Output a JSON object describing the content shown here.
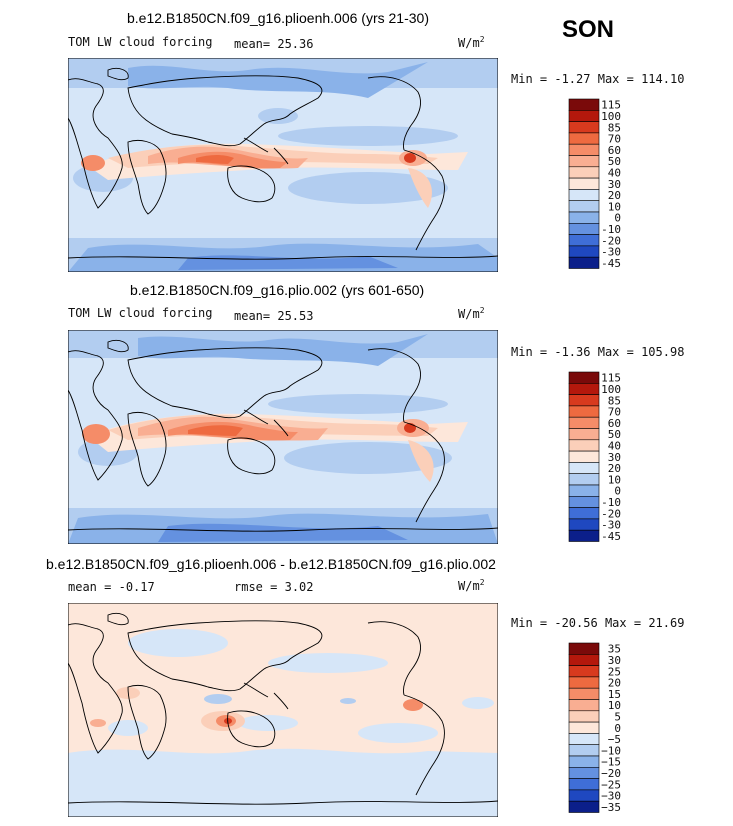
{
  "season": "SON",
  "palette": {
    "c115": "#7a0a0a",
    "c100": "#b4180c",
    "c85": "#d83a1e",
    "c70": "#ee6a40",
    "c60": "#f58c68",
    "c50": "#f9ae92",
    "c40": "#fbcfb9",
    "c30": "#fde7da",
    "c20": "#d6e6f8",
    "c10": "#b2cdf0",
    "c0": "#8ab2e9",
    "cm10": "#6491e0",
    "cm20": "#3f6ed7",
    "cm30": "#1f48c0",
    "cm45": "#0b1f8a"
  },
  "panels": [
    {
      "title": "b.e12.B1850CN.f09_g16.plioenh.006 (yrs 21-30)",
      "variable": "TOM LW cloud forcing",
      "stat1_label": "mean=",
      "stat1_value": "25.36",
      "units_base": "W/m",
      "units_exp": "2",
      "min_label": "Min =",
      "min_value": "-1.27",
      "max_label": "Max =",
      "max_value": "114.10"
    },
    {
      "title": "b.e12.B1850CN.f09_g16.plio.002 (yrs 601-650)",
      "variable": "TOM LW cloud forcing",
      "stat1_label": "mean=",
      "stat1_value": "25.53",
      "units_base": "W/m",
      "units_exp": "2",
      "min_label": "Min =",
      "min_value": "-1.36",
      "max_label": "Max =",
      "max_value": "105.98"
    },
    {
      "title": "b.e12.B1850CN.f09_g16.plioenh.006 - b.e12.B1850CN.f09_g16.plio.002",
      "stat1_label": "mean =",
      "stat1_value": "-0.17",
      "stat2_label": "rmse =",
      "stat2_value": "3.02",
      "units_base": "W/m",
      "units_exp": "2",
      "min_label": "Min =",
      "min_value": "-20.56",
      "max_label": "Max =",
      "max_value": "21.69"
    }
  ],
  "chart_data": [
    {
      "type": "heatmap",
      "title": "b.e12.B1850CN.f09_g16.plioenh.006 (yrs 21-30)",
      "variable": "TOM LW cloud forcing",
      "units": "W/m^2",
      "season": "SON",
      "mean": 25.36,
      "min": -1.27,
      "max": 114.1,
      "colorbar_levels": [
        115,
        100,
        85,
        70,
        60,
        50,
        40,
        30,
        20,
        10,
        0,
        -10,
        -20,
        -30,
        -45
      ],
      "colorbar_labels": [
        "115",
        "100",
        "85",
        "70",
        "60",
        "50",
        "40",
        "30",
        "20",
        "10",
        "0",
        "-10",
        "-20",
        "-30",
        "-45"
      ],
      "colors": [
        "c115",
        "c100",
        "c85",
        "c70",
        "c60",
        "c50",
        "c40",
        "c30",
        "c20",
        "c10",
        "c0",
        "cm10",
        "cm20",
        "cm30",
        "cm45"
      ]
    },
    {
      "type": "heatmap",
      "title": "b.e12.B1850CN.f09_g16.plio.002 (yrs 601-650)",
      "variable": "TOM LW cloud forcing",
      "units": "W/m^2",
      "season": "SON",
      "mean": 25.53,
      "min": -1.36,
      "max": 105.98,
      "colorbar_levels": [
        115,
        100,
        85,
        70,
        60,
        50,
        40,
        30,
        20,
        10,
        0,
        -10,
        -20,
        -30,
        -45
      ],
      "colorbar_labels": [
        "115",
        "100",
        "85",
        "70",
        "60",
        "50",
        "40",
        "30",
        "20",
        "10",
        "0",
        "-10",
        "-20",
        "-30",
        "-45"
      ],
      "colors": [
        "c115",
        "c100",
        "c85",
        "c70",
        "c60",
        "c50",
        "c40",
        "c30",
        "c20",
        "c10",
        "c0",
        "cm10",
        "cm20",
        "cm30",
        "cm45"
      ]
    },
    {
      "type": "heatmap",
      "title": "b.e12.B1850CN.f09_g16.plioenh.006 - b.e12.B1850CN.f09_g16.plio.002",
      "units": "W/m^2",
      "season": "SON",
      "mean": -0.17,
      "rmse": 3.02,
      "min": -20.56,
      "max": 21.69,
      "colorbar_levels": [
        35,
        30,
        25,
        20,
        15,
        10,
        5,
        0,
        -5,
        -10,
        -15,
        -20,
        -25,
        -30,
        -35
      ],
      "colorbar_labels": [
        "35",
        "30",
        "25",
        "20",
        "15",
        "10",
        "5",
        "0",
        "−5",
        "−10",
        "−15",
        "−20",
        "−25",
        "−30",
        "−35"
      ],
      "colors": [
        "c115",
        "c100",
        "c85",
        "c70",
        "c60",
        "c50",
        "c40",
        "c30",
        "c20",
        "c10",
        "c0",
        "cm10",
        "cm20",
        "cm30",
        "cm45"
      ]
    }
  ]
}
